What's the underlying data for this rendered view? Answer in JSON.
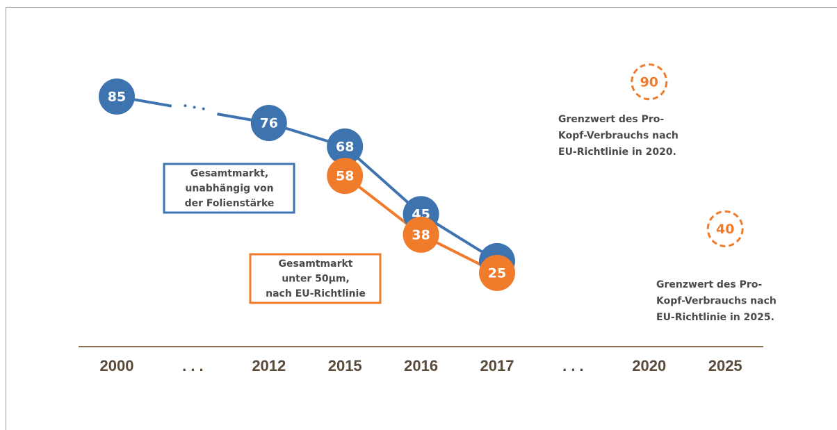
{
  "chart_data": {
    "type": "line",
    "categories": [
      "2000",
      ". . .",
      "2012",
      "2015",
      "2016",
      "2017",
      ". . .",
      "2020",
      "2025"
    ],
    "ylim": [
      0,
      100
    ],
    "series": [
      {
        "name": [
          "Gesamtmarkt,",
          "unabhängig von",
          "der Folienstärke"
        ],
        "color": "#3d74b0",
        "values": [
          85,
          null,
          76,
          68,
          45,
          29,
          null,
          null,
          null
        ]
      },
      {
        "name": [
          "Gesamtmarkt",
          "unter 50µm,",
          "nach EU-Richtlinie"
        ],
        "color": "#ef7b2b",
        "values": [
          null,
          null,
          null,
          58,
          38,
          25,
          null,
          null,
          null
        ]
      },
      {
        "color": "#ef7b2b",
        "dashed": true,
        "values": [
          null,
          null,
          null,
          null,
          null,
          null,
          null,
          90,
          40
        ]
      }
    ],
    "annotations": [
      [
        "Grenzwert des Pro-",
        "Kopf-Verbrauchs nach",
        "EU-Richtlinie in 2020."
      ],
      [
        "Grenzwert des Pro-",
        "Kopf-Verbrauchs nach",
        "EU-Richtlinie in 2025."
      ]
    ]
  }
}
